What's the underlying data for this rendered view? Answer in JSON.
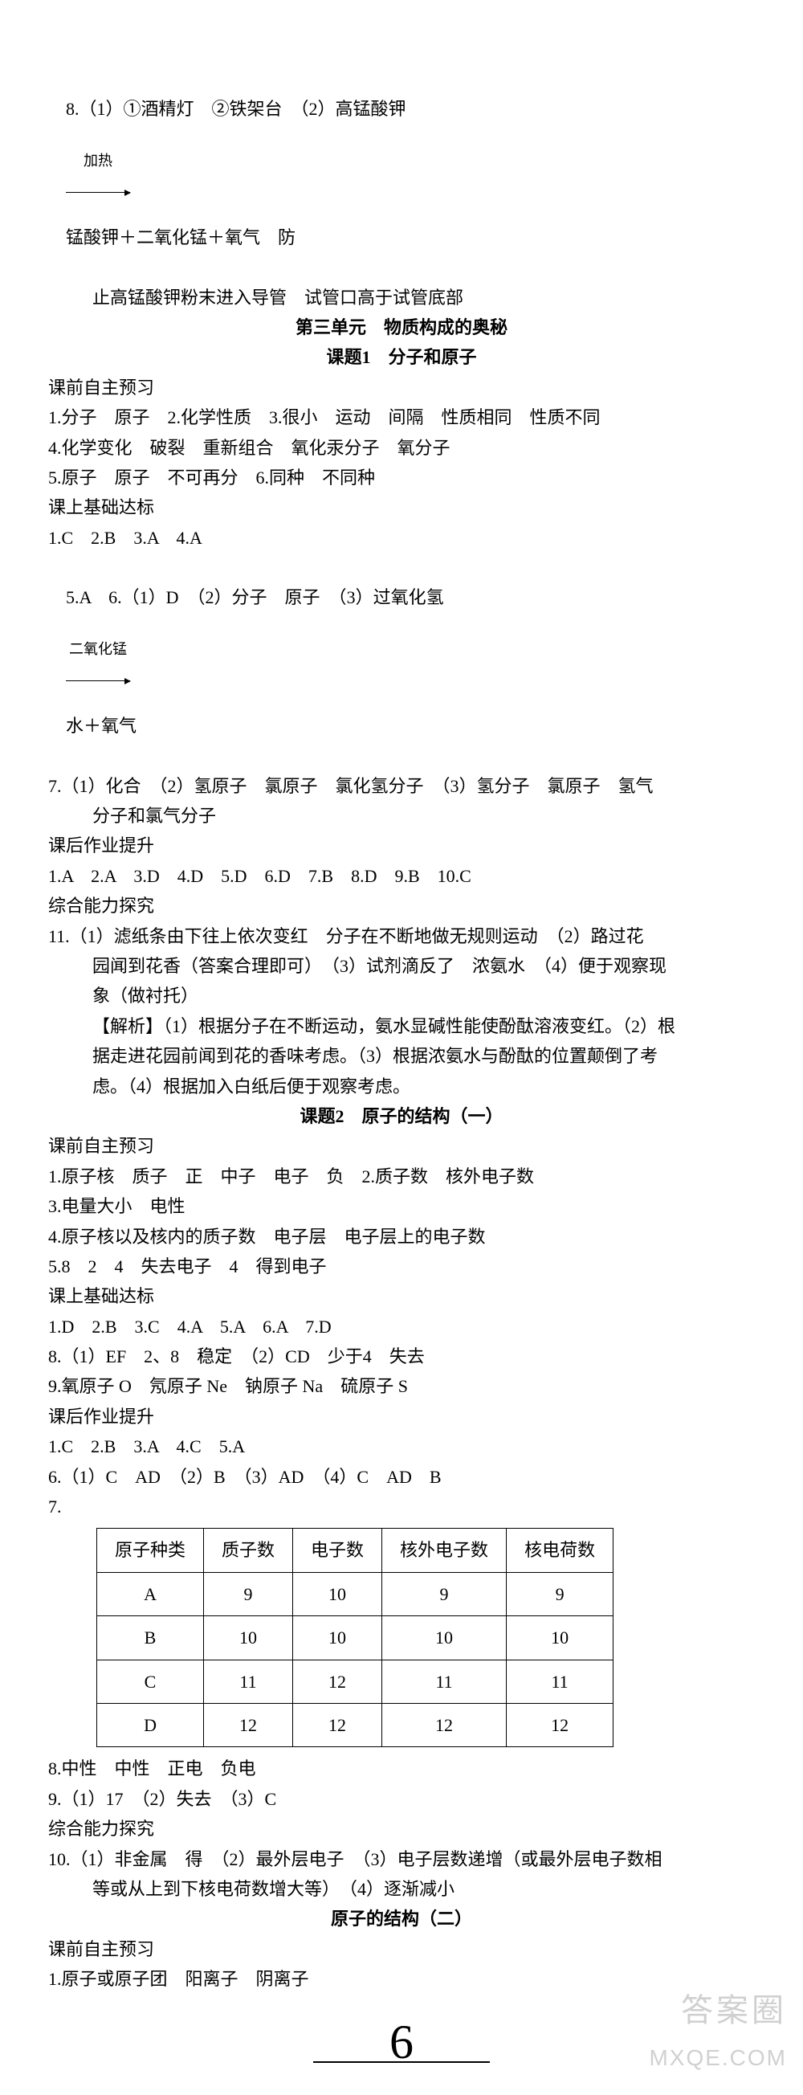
{
  "q8": {
    "line1_a": "8.（1）①酒精灯　②铁架台　（2）高锰酸钾",
    "arrow_label": "加热",
    "line1_b": "锰酸钾＋二氧化锰＋氧气　防",
    "line2": "止高锰酸钾粉末进入导管　试管口高于试管底部"
  },
  "unit3_title": "第三单元　物质构成的奥秘",
  "topic1_title": "课题1　分子和原子",
  "s1": {
    "pre_title": "课前自主预习",
    "l1": "1.分子　原子　2.化学性质　3.很小　运动　间隔　性质相同　性质不同",
    "l2": "4.化学变化　破裂　重新组合　氧化汞分子　氧分子",
    "l3": "5.原子　原子　不可再分　6.同种　不同种",
    "cls_title": "课上基础达标",
    "c1": "1.C　2.B　3.A　4.A",
    "c2a": "5.A　6.（1）D　（2）分子　原子　（3）过氧化氢",
    "c2_arrow": "二氧化锰",
    "c2b": "水＋氧气",
    "c3": "7.（1）化合　（2）氢原子　氯原子　氯化氢分子　（3）氢分子　氯原子　氢气",
    "c3b": "分子和氯气分子",
    "hw_title": "课后作业提升",
    "hw1": "1.A　2.A　3.D　4.D　5.D　6.D　7.B　8.D　9.B　10.C",
    "exp_title": "综合能力探究",
    "e1": "11.（1）滤纸条由下往上依次变红　分子在不断地做无规则运动　（2）路过花",
    "e1b": "园闻到花香（答案合理即可）　（3）试剂滴反了　浓氨水　（4）便于观察现",
    "e1c": "象（做衬托）",
    "e2": "【解析】（1）根据分子在不断运动，氨水显碱性能使酚酞溶液变红。（2）根",
    "e2b": "据走进花园前闻到花的香味考虑。（3）根据浓氨水与酚酞的位置颠倒了考",
    "e2c": "虑。（4）根据加入白纸后便于观察考虑。"
  },
  "topic2_title": "课题2　原子的结构（一）",
  "s2": {
    "pre_title": "课前自主预习",
    "p1": "1.原子核　质子　正　中子　电子　负　2.质子数　核外电子数",
    "p2": "3.电量大小　电性",
    "p3": "4.原子核以及核内的质子数　电子层　电子层上的电子数",
    "p4": "5.8　2　4　失去电子　4　得到电子",
    "cls_title": "课上基础达标",
    "c1": "1.D　2.B　3.C　4.A　5.A　6.A　7.D",
    "c2": "8.（1）EF　2、8　稳定　（2）CD　少于4　失去",
    "c3": "9.氧原子 O　氖原子 Ne　钠原子 Na　硫原子 S",
    "hw_title": "课后作业提升",
    "h1": "1.C　2.B　3.A　4.C　5.A",
    "h2": "6.（1）C　AD　（2）B　（3）AD　（4）C　AD　B",
    "h3": "7.",
    "table": {
      "headers": [
        "原子种类",
        "质子数",
        "电子数",
        "核外电子数",
        "核电荷数"
      ],
      "rows": [
        [
          "A",
          "9",
          "10",
          "9",
          "9"
        ],
        [
          "B",
          "10",
          "10",
          "10",
          "10"
        ],
        [
          "C",
          "11",
          "12",
          "11",
          "11"
        ],
        [
          "D",
          "12",
          "12",
          "12",
          "12"
        ]
      ]
    },
    "h4": "8.中性　中性　正电　负电",
    "h5": "9.（1）17　（2）失去　（3）C",
    "exp_title": "综合能力探究",
    "e1": "10.（1）非金属　得　（2）最外层电子　（3）电子层数递增（或最外层电子数相",
    "e1b": "等或从上到下核电荷数增大等）　（4）逐渐减小"
  },
  "topic2b_title": "原子的结构（二）",
  "s2b": {
    "pre_title": "课前自主预习",
    "p1": "1.原子或原子团　阳离子　阴离子"
  },
  "page_number": "6",
  "watermark_a": "答案圈",
  "watermark_b": "MXQE.COM",
  "style": {
    "font_size_pt": 16,
    "background_color": "#ffffff",
    "text_color": "#000000",
    "table_border_color": "#000000",
    "watermark_color": "rgba(150,150,150,0.45)"
  }
}
